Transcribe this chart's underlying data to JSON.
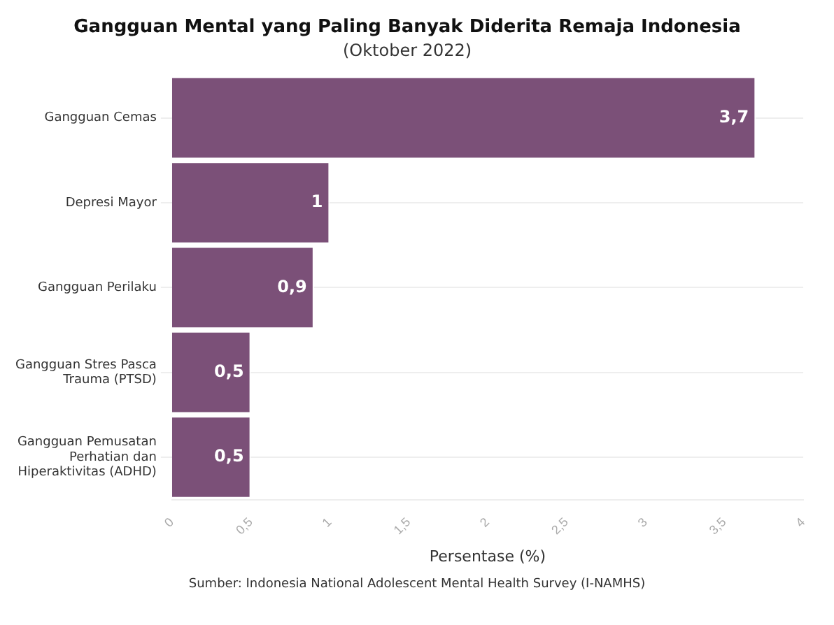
{
  "chart_data": {
    "type": "bar",
    "orientation": "horizontal",
    "title": "Gangguan Mental yang Paling Banyak Diderita Remaja Indonesia",
    "subtitle": "(Oktober 2022)",
    "xlabel": "Persentase (%)",
    "categories": [
      "Gangguan Cemas",
      "Depresi Mayor",
      "Gangguan Perilaku",
      "Gangguan Stres Pasca Trauma (PTSD)",
      "Gangguan Pemusatan Perhatian dan Hiperaktivitas (ADHD)"
    ],
    "values": [
      3.7,
      1,
      0.9,
      0.5,
      0.5
    ],
    "color": "#7b5078",
    "value_labels": [
      "3,7",
      "1",
      "0,9",
      "0,5",
      "0,5"
    ],
    "xlim": [
      0,
      4
    ],
    "xticks": [
      0,
      {
        "value": 0.5,
        "label": "0,5"
      },
      1,
      {
        "value": 1.5,
        "label": "1,5"
      },
      2,
      {
        "value": 2.5,
        "label": "2,5"
      },
      3,
      {
        "value": 3.5,
        "label": "3,5"
      },
      4
    ],
    "grid": "y",
    "legend": false,
    "annotations": [
      "Sumber: Indonesia National Adolescent Mental Health Survey (I-NAMHS)"
    ]
  }
}
